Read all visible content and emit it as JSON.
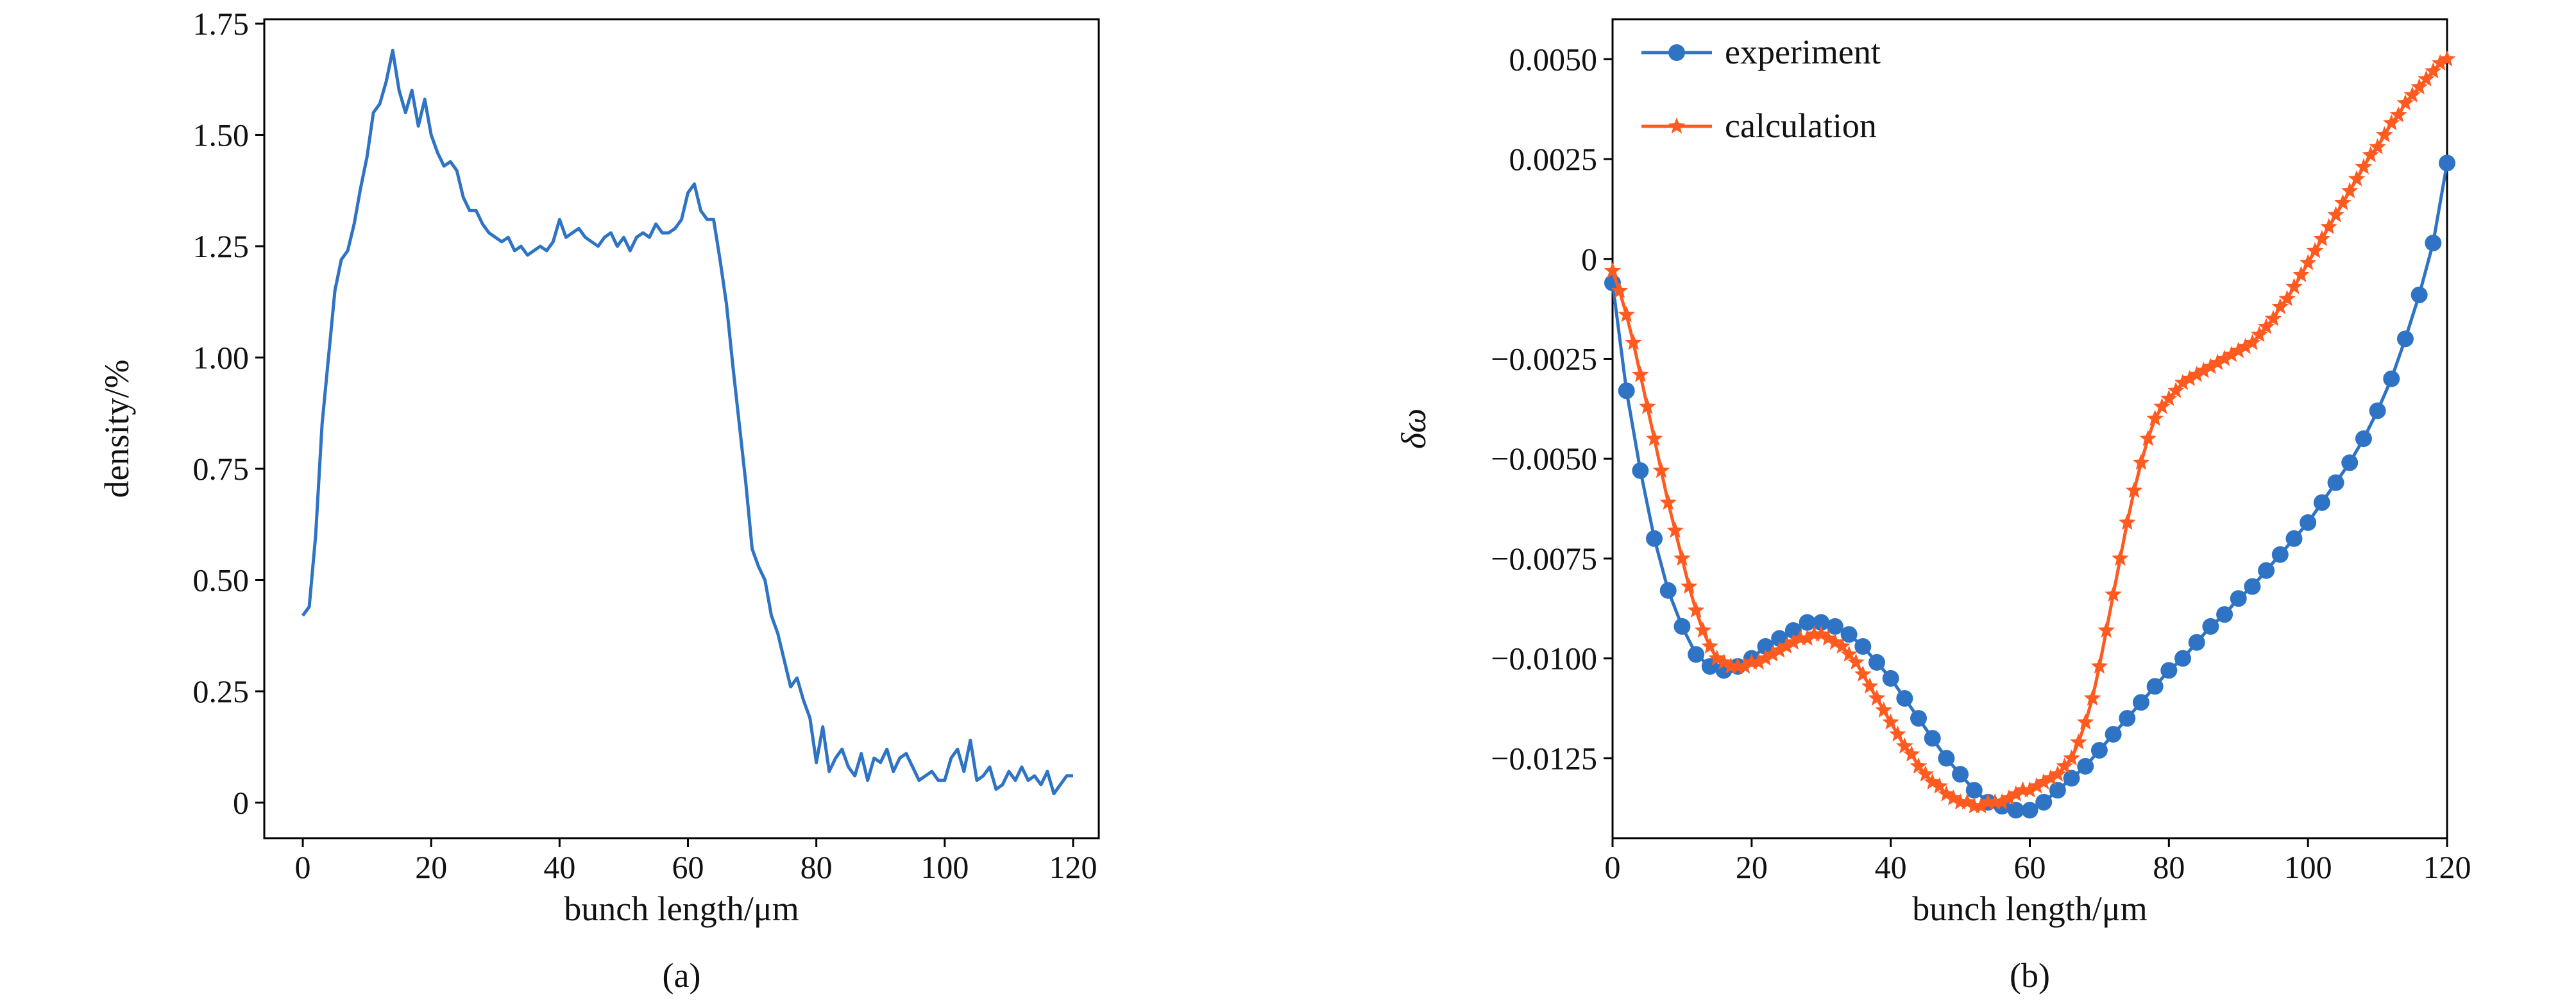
{
  "colors": {
    "blue": "#2f73c4",
    "orange": "#ff5a1f",
    "axis": "#000000"
  },
  "chart_data": [
    {
      "type": "line",
      "caption": "(a)",
      "xlabel": "bunch length/μm",
      "ylabel": "density/%",
      "xlim": [
        -6,
        124
      ],
      "ylim": [
        -0.08,
        1.76
      ],
      "xticks": [
        0,
        20,
        40,
        60,
        80,
        100,
        120
      ],
      "yticks": [
        0,
        0.25,
        0.5,
        0.75,
        1.0,
        1.25,
        1.5,
        1.75
      ],
      "ytick_labels": [
        "0",
        "0.25",
        "0.50",
        "0.75",
        "1.00",
        "1.25",
        "1.50",
        "1.75"
      ],
      "series": [
        {
          "color": "#2f73c4",
          "x": [
            0,
            1,
            2,
            3,
            4,
            5,
            6,
            7,
            8,
            9,
            10,
            11,
            12,
            13,
            14,
            15,
            16,
            17,
            18,
            19,
            20,
            21,
            22,
            23,
            24,
            25,
            26,
            27,
            28,
            29,
            30,
            31,
            32,
            33,
            34,
            35,
            36,
            37,
            38,
            39,
            40,
            41,
            42,
            43,
            44,
            45,
            46,
            47,
            48,
            49,
            50,
            51,
            52,
            53,
            54,
            55,
            56,
            57,
            58,
            59,
            60,
            61,
            62,
            63,
            64,
            65,
            66,
            67,
            68,
            69,
            70,
            71,
            72,
            73,
            74,
            75,
            76,
            77,
            78,
            79,
            80,
            81,
            82,
            83,
            84,
            85,
            86,
            87,
            88,
            89,
            90,
            91,
            92,
            93,
            94,
            95,
            96,
            97,
            98,
            99,
            100,
            101,
            102,
            103,
            104,
            105,
            106,
            107,
            108,
            109,
            110,
            111,
            112,
            113,
            114,
            115,
            116,
            117,
            118,
            119,
            120
          ],
          "y": [
            0.42,
            0.44,
            0.6,
            0.85,
            1.0,
            1.15,
            1.22,
            1.24,
            1.3,
            1.38,
            1.45,
            1.55,
            1.57,
            1.62,
            1.69,
            1.6,
            1.55,
            1.6,
            1.52,
            1.58,
            1.5,
            1.46,
            1.43,
            1.44,
            1.42,
            1.36,
            1.33,
            1.33,
            1.3,
            1.28,
            1.27,
            1.26,
            1.27,
            1.24,
            1.25,
            1.23,
            1.24,
            1.25,
            1.24,
            1.26,
            1.31,
            1.27,
            1.28,
            1.29,
            1.27,
            1.26,
            1.25,
            1.27,
            1.28,
            1.25,
            1.27,
            1.24,
            1.27,
            1.28,
            1.27,
            1.3,
            1.28,
            1.28,
            1.29,
            1.31,
            1.37,
            1.39,
            1.33,
            1.31,
            1.31,
            1.22,
            1.12,
            0.98,
            0.85,
            0.72,
            0.57,
            0.53,
            0.5,
            0.42,
            0.38,
            0.32,
            0.26,
            0.28,
            0.23,
            0.19,
            0.09,
            0.17,
            0.07,
            0.1,
            0.12,
            0.08,
            0.06,
            0.11,
            0.05,
            0.1,
            0.09,
            0.12,
            0.07,
            0.1,
            0.11,
            0.08,
            0.05,
            0.06,
            0.07,
            0.05,
            0.05,
            0.1,
            0.12,
            0.07,
            0.14,
            0.05,
            0.06,
            0.08,
            0.03,
            0.04,
            0.07,
            0.05,
            0.08,
            0.05,
            0.06,
            0.04,
            0.07,
            0.02,
            0.04,
            0.06,
            0.06
          ]
        }
      ]
    },
    {
      "type": "line",
      "caption": "(b)",
      "xlabel": "bunch length/μm",
      "ylabel": "δω",
      "xlim": [
        0,
        120
      ],
      "ylim": [
        -0.0145,
        0.006
      ],
      "xticks": [
        0,
        20,
        40,
        60,
        80,
        100,
        120
      ],
      "yticks": [
        0.005,
        0.0025,
        0,
        -0.0025,
        -0.005,
        -0.0075,
        -0.01,
        -0.0125
      ],
      "ytick_labels": [
        "0.0050",
        "0.0025",
        "0",
        "−0.0025",
        "−0.0050",
        "−0.0075",
        "−0.0100",
        "−0.0125"
      ],
      "legend_position": "top-left",
      "series": [
        {
          "name": "experiment",
          "color": "#2f73c4",
          "marker": "circle",
          "x": [
            0,
            2,
            4,
            6,
            8,
            10,
            12,
            14,
            16,
            18,
            20,
            22,
            24,
            26,
            28,
            30,
            32,
            34,
            36,
            38,
            40,
            42,
            44,
            46,
            48,
            50,
            52,
            54,
            56,
            58,
            60,
            62,
            64,
            66,
            68,
            70,
            72,
            74,
            76,
            78,
            80,
            82,
            84,
            86,
            88,
            90,
            92,
            94,
            96,
            98,
            100,
            102,
            104,
            106,
            108,
            110,
            112,
            114,
            116,
            118,
            120
          ],
          "y": [
            -0.0006,
            -0.0033,
            -0.0053,
            -0.007,
            -0.0083,
            -0.0092,
            -0.0099,
            -0.0102,
            -0.0103,
            -0.0102,
            -0.01,
            -0.0097,
            -0.0095,
            -0.0093,
            -0.0091,
            -0.0091,
            -0.0092,
            -0.0094,
            -0.0097,
            -0.0101,
            -0.0105,
            -0.011,
            -0.0115,
            -0.012,
            -0.0125,
            -0.0129,
            -0.0133,
            -0.0136,
            -0.0137,
            -0.0138,
            -0.0138,
            -0.0136,
            -0.0133,
            -0.013,
            -0.0127,
            -0.0123,
            -0.0119,
            -0.0115,
            -0.0111,
            -0.0107,
            -0.0103,
            -0.01,
            -0.0096,
            -0.0092,
            -0.0089,
            -0.0085,
            -0.0082,
            -0.0078,
            -0.0074,
            -0.007,
            -0.0066,
            -0.0061,
            -0.0056,
            -0.0051,
            -0.0045,
            -0.0038,
            -0.003,
            -0.002,
            -0.0009,
            0.0004,
            0.0024
          ]
        },
        {
          "name": "calculation",
          "color": "#ff5a1f",
          "marker": "star",
          "x": [
            0,
            1,
            2,
            3,
            4,
            5,
            6,
            7,
            8,
            9,
            10,
            11,
            12,
            13,
            14,
            15,
            16,
            17,
            18,
            19,
            20,
            21,
            22,
            23,
            24,
            25,
            26,
            27,
            28,
            29,
            30,
            31,
            32,
            33,
            34,
            35,
            36,
            37,
            38,
            39,
            40,
            41,
            42,
            43,
            44,
            45,
            46,
            47,
            48,
            49,
            50,
            51,
            52,
            53,
            54,
            55,
            56,
            57,
            58,
            59,
            60,
            61,
            62,
            63,
            64,
            65,
            66,
            67,
            68,
            69,
            70,
            71,
            72,
            73,
            74,
            75,
            76,
            77,
            78,
            79,
            80,
            81,
            82,
            83,
            84,
            85,
            86,
            87,
            88,
            89,
            90,
            91,
            92,
            93,
            94,
            95,
            96,
            97,
            98,
            99,
            100,
            101,
            102,
            103,
            104,
            105,
            106,
            107,
            108,
            109,
            110,
            111,
            112,
            113,
            114,
            115,
            116,
            117,
            118,
            119,
            120
          ],
          "y": [
            -0.0003,
            -0.0008,
            -0.0014,
            -0.0021,
            -0.0029,
            -0.0037,
            -0.0045,
            -0.0053,
            -0.0061,
            -0.0068,
            -0.0075,
            -0.0082,
            -0.0088,
            -0.0093,
            -0.0097,
            -0.01,
            -0.0101,
            -0.0102,
            -0.0102,
            -0.0102,
            -0.0101,
            -0.0101,
            -0.01,
            -0.0099,
            -0.0098,
            -0.0097,
            -0.0096,
            -0.0095,
            -0.0095,
            -0.0094,
            -0.0094,
            -0.0095,
            -0.0096,
            -0.0097,
            -0.0099,
            -0.0101,
            -0.0104,
            -0.0107,
            -0.011,
            -0.0113,
            -0.0116,
            -0.0119,
            -0.0122,
            -0.0124,
            -0.0127,
            -0.0129,
            -0.0131,
            -0.0132,
            -0.0134,
            -0.0135,
            -0.0136,
            -0.0136,
            -0.0137,
            -0.0137,
            -0.0136,
            -0.0136,
            -0.0136,
            -0.0135,
            -0.0134,
            -0.0133,
            -0.0133,
            -0.0132,
            -0.0131,
            -0.013,
            -0.0129,
            -0.0127,
            -0.0125,
            -0.0121,
            -0.0116,
            -0.011,
            -0.0102,
            -0.0093,
            -0.0084,
            -0.0075,
            -0.0066,
            -0.0058,
            -0.0051,
            -0.0045,
            -0.004,
            -0.0037,
            -0.0035,
            -0.0033,
            -0.0031,
            -0.003,
            -0.0029,
            -0.0028,
            -0.0027,
            -0.0026,
            -0.0025,
            -0.0024,
            -0.0023,
            -0.0022,
            -0.0021,
            -0.0019,
            -0.0017,
            -0.0015,
            -0.0012,
            -0.001,
            -0.0007,
            -0.0004,
            -0.0001,
            0.0002,
            0.0005,
            0.0008,
            0.0011,
            0.0014,
            0.0017,
            0.002,
            0.0023,
            0.0026,
            0.0028,
            0.0031,
            0.0034,
            0.0036,
            0.0039,
            0.0041,
            0.0043,
            0.0045,
            0.0047,
            0.0049,
            0.005
          ]
        }
      ]
    }
  ]
}
